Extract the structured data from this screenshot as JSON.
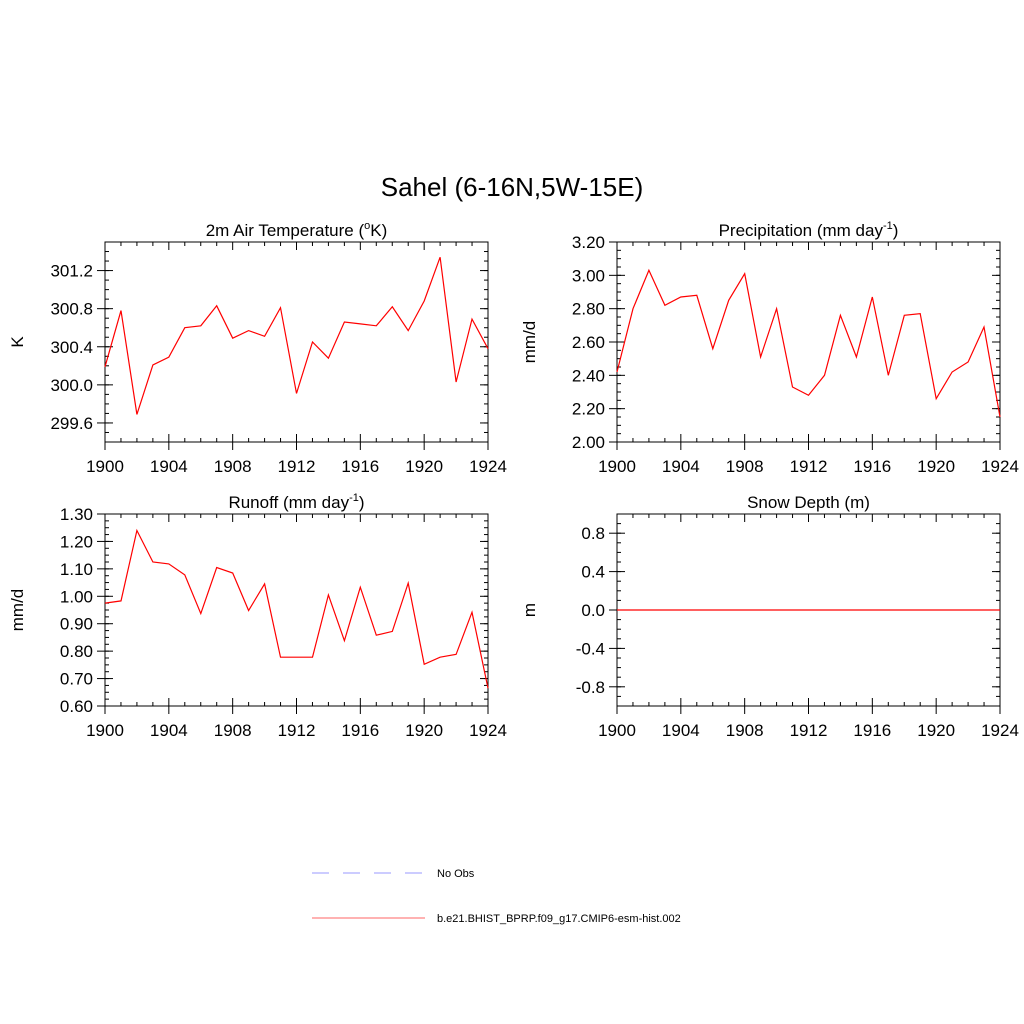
{
  "figure_title": "Sahel (6-16N,5W-15E)",
  "legend": {
    "items": [
      {
        "label": "No Obs",
        "color": "#9999ff",
        "dash": true
      },
      {
        "label": "b.e21.BHIST_BPRP.f09_g17.CMIP6-esm-hist.002",
        "color": "#ff6666",
        "dash": false
      }
    ]
  },
  "chart_data": [
    {
      "type": "line",
      "title_main": "2m Air Temperature (",
      "title_sup": "o",
      "title_end": "K)",
      "ylabel": "K",
      "xlim": [
        1900,
        1924
      ],
      "ylim": [
        299.4,
        301.5
      ],
      "xticks": [
        "1900",
        "1904",
        "1908",
        "1912",
        "1916",
        "1920",
        "1924"
      ],
      "yticks": [
        "299.6",
        "300.0",
        "300.4",
        "300.8",
        "301.2"
      ],
      "series": [
        {
          "color": "#ff0000",
          "x": [
            1900,
            1901,
            1902,
            1903,
            1904,
            1905,
            1906,
            1907,
            1908,
            1909,
            1910,
            1911,
            1912,
            1913,
            1914,
            1915,
            1916,
            1917,
            1918,
            1919,
            1920,
            1921,
            1922,
            1923,
            1924
          ],
          "values": [
            300.19,
            300.78,
            299.69,
            300.21,
            300.29,
            300.6,
            300.62,
            300.83,
            300.49,
            300.57,
            300.51,
            300.81,
            299.91,
            300.45,
            300.28,
            300.66,
            300.64,
            300.62,
            300.82,
            300.57,
            300.88,
            301.34,
            300.03,
            300.69,
            300.38
          ]
        }
      ]
    },
    {
      "type": "line",
      "title_main": "Precipitation (mm day",
      "title_sup": "-1",
      "title_end": ")",
      "ylabel": "mm/d",
      "xlim": [
        1900,
        1924
      ],
      "ylim": [
        2.0,
        3.2
      ],
      "xticks": [
        "1900",
        "1904",
        "1908",
        "1912",
        "1916",
        "1920",
        "1924"
      ],
      "yticks": [
        "2.00",
        "2.20",
        "2.40",
        "2.60",
        "2.80",
        "3.00",
        "3.20"
      ],
      "series": [
        {
          "color": "#ff0000",
          "x": [
            1900,
            1901,
            1902,
            1903,
            1904,
            1905,
            1906,
            1907,
            1908,
            1909,
            1910,
            1911,
            1912,
            1913,
            1914,
            1915,
            1916,
            1917,
            1918,
            1919,
            1920,
            1921,
            1922,
            1923,
            1924
          ],
          "values": [
            2.42,
            2.8,
            3.03,
            2.82,
            2.87,
            2.88,
            2.56,
            2.85,
            3.01,
            2.51,
            2.8,
            2.33,
            2.28,
            2.4,
            2.76,
            2.51,
            2.87,
            2.4,
            2.76,
            2.77,
            2.26,
            2.42,
            2.48,
            2.69,
            2.15
          ]
        }
      ]
    },
    {
      "type": "line",
      "title_main": "Runoff (mm day",
      "title_sup": "-1",
      "title_end": ")",
      "ylabel": "mm/d",
      "xlim": [
        1900,
        1924
      ],
      "ylim": [
        0.6,
        1.3
      ],
      "xticks": [
        "1900",
        "1904",
        "1908",
        "1912",
        "1916",
        "1920",
        "1924"
      ],
      "yticks": [
        "0.60",
        "0.70",
        "0.80",
        "0.90",
        "1.00",
        "1.10",
        "1.20",
        "1.30"
      ],
      "series": [
        {
          "color": "#ff0000",
          "x": [
            1900,
            1901,
            1902,
            1903,
            1904,
            1905,
            1906,
            1907,
            1908,
            1909,
            1910,
            1911,
            1912,
            1913,
            1914,
            1915,
            1916,
            1917,
            1918,
            1919,
            1920,
            1921,
            1922,
            1923,
            1924
          ],
          "values": [
            0.975,
            0.983,
            1.24,
            1.125,
            1.118,
            1.078,
            0.937,
            1.105,
            1.085,
            0.948,
            1.045,
            0.778,
            0.778,
            0.778,
            1.005,
            0.838,
            1.033,
            0.858,
            0.872,
            1.048,
            0.752,
            0.778,
            0.788,
            0.942,
            0.665
          ]
        }
      ]
    },
    {
      "type": "line",
      "title_main": "Snow Depth (m)",
      "title_sup": "",
      "title_end": "",
      "ylabel": "m",
      "xlim": [
        1900,
        1924
      ],
      "ylim": [
        -1.0,
        1.0
      ],
      "xticks": [
        "1900",
        "1904",
        "1908",
        "1912",
        "1916",
        "1920",
        "1924"
      ],
      "yticks": [
        "-0.8",
        "-0.4",
        "0.0",
        "0.4",
        "0.8"
      ],
      "series": [
        {
          "color": "#ff0000",
          "x": [
            1900,
            1901,
            1902,
            1903,
            1904,
            1905,
            1906,
            1907,
            1908,
            1909,
            1910,
            1911,
            1912,
            1913,
            1914,
            1915,
            1916,
            1917,
            1918,
            1919,
            1920,
            1921,
            1922,
            1923,
            1924
          ],
          "values": [
            0,
            0,
            0,
            0,
            0,
            0,
            0,
            0,
            0,
            0,
            0,
            0,
            0,
            0,
            0,
            0,
            0,
            0,
            0,
            0,
            0,
            0,
            0,
            0,
            0
          ]
        }
      ]
    }
  ]
}
